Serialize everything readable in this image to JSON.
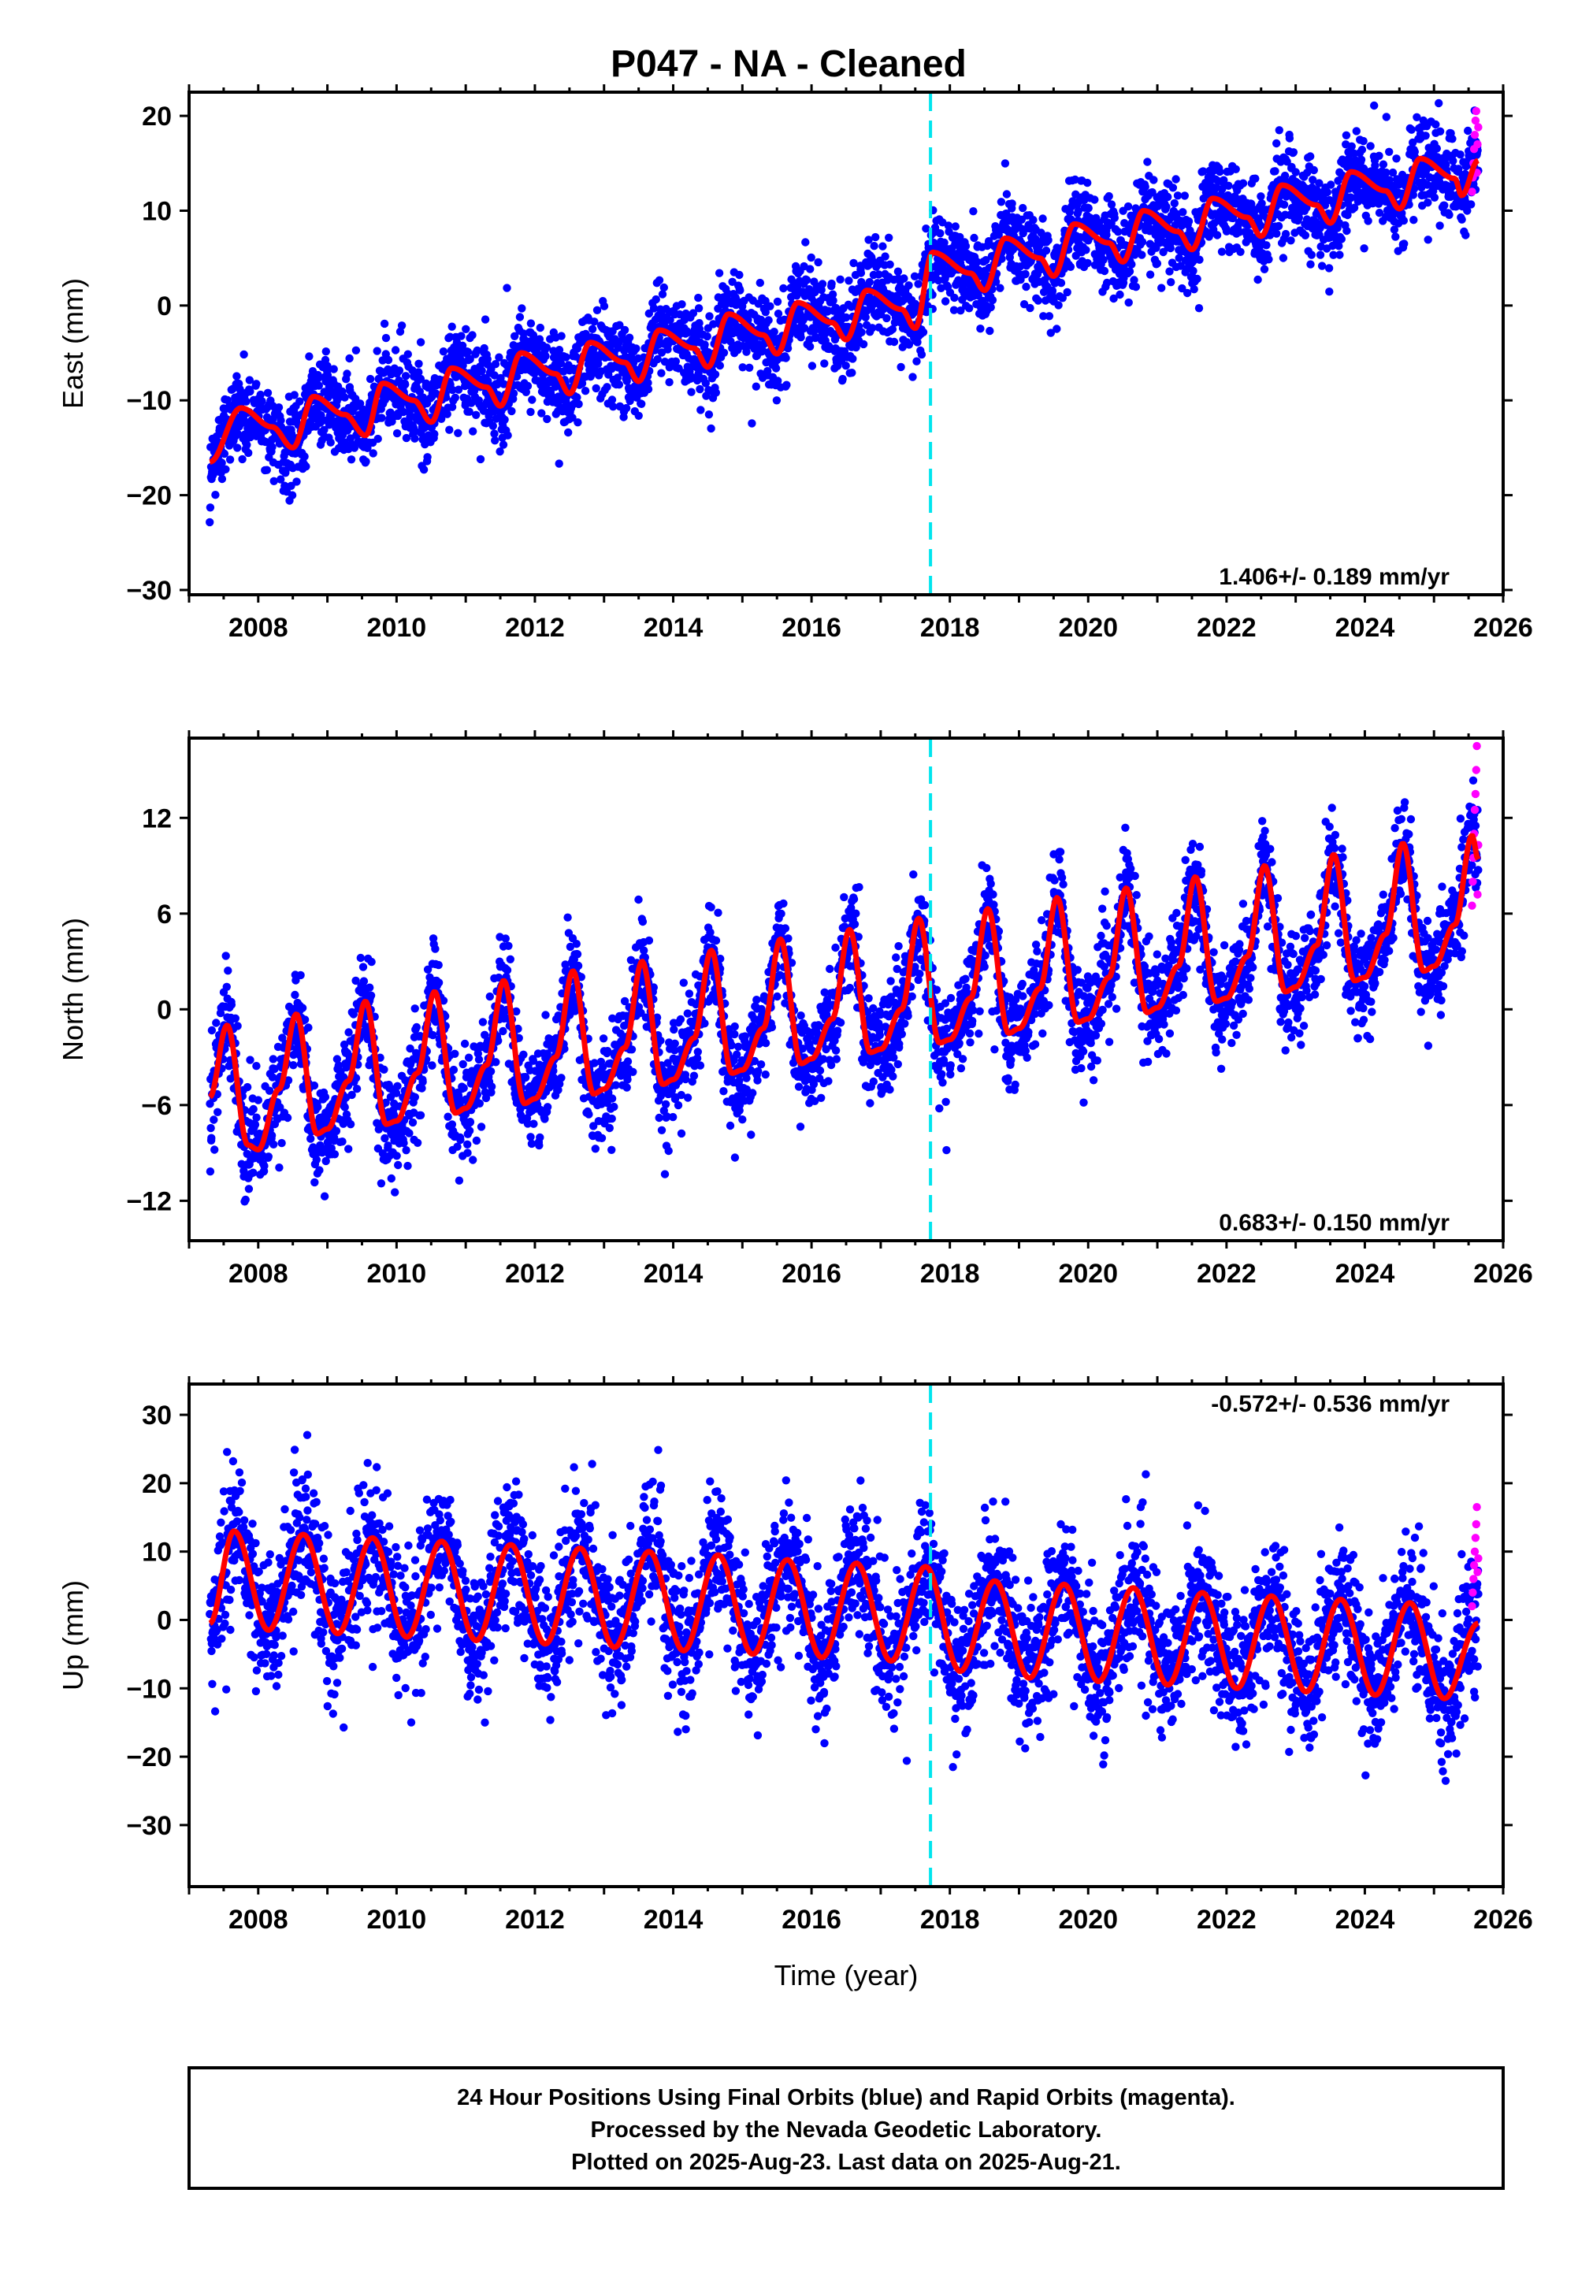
{
  "title": "P047  - NA - Cleaned",
  "colors": {
    "final_points": "#0000ff",
    "rapid_points": "#ff00ff",
    "model_curve": "#ff0000",
    "marker_line": "#00e5ee",
    "frame": "#000000"
  },
  "chart_data": [
    {
      "type": "scatter",
      "panel": "East",
      "ylabel": "East (mm)",
      "xlabel": "",
      "xlim": [
        2007.0,
        2026.0
      ],
      "ylim": [
        -30.5,
        22.5
      ],
      "x_ticks": [
        2008,
        2010,
        2012,
        2014,
        2016,
        2018,
        2020,
        2022,
        2024,
        2026
      ],
      "x_tick_labels": [
        "2008",
        "2010",
        "2012",
        "2014",
        "2016",
        "2018",
        "2020",
        "2022",
        "2024",
        "2026"
      ],
      "y_ticks": [
        20,
        10,
        0,
        -10,
        -20,
        -30
      ],
      "y_tick_labels": [
        "20",
        "10",
        "0",
        "−10",
        "−20",
        "−30"
      ],
      "rate_text": "1.406+/- 0.189 mm/yr",
      "rate_position": "bottom-right",
      "marker_year": 2017.72,
      "data_span": [
        2007.3,
        2025.64
      ],
      "model": {
        "samples": [
          [
            2007.3,
            -16.5
          ],
          [
            2007.75,
            -10.8
          ],
          [
            2008.2,
            -12.8
          ],
          [
            2008.5,
            -15.0
          ],
          [
            2008.8,
            -9.6
          ],
          [
            2009.25,
            -11.5
          ],
          [
            2009.55,
            -13.7
          ],
          [
            2009.8,
            -8.2
          ],
          [
            2010.25,
            -10.0
          ],
          [
            2010.5,
            -12.3
          ],
          [
            2010.8,
            -6.6
          ],
          [
            2011.3,
            -8.6
          ],
          [
            2011.5,
            -10.6
          ],
          [
            2011.8,
            -5.0
          ],
          [
            2012.3,
            -7.2
          ],
          [
            2012.5,
            -9.3
          ],
          [
            2012.8,
            -3.9
          ],
          [
            2013.3,
            -6.0
          ],
          [
            2013.5,
            -8.0
          ],
          [
            2013.8,
            -2.6
          ],
          [
            2014.3,
            -4.5
          ],
          [
            2014.5,
            -6.5
          ],
          [
            2014.8,
            -0.9
          ],
          [
            2015.3,
            -3.1
          ],
          [
            2015.5,
            -5.1
          ],
          [
            2015.8,
            0.3
          ],
          [
            2016.3,
            -1.8
          ],
          [
            2016.5,
            -3.6
          ],
          [
            2016.8,
            1.6
          ],
          [
            2017.3,
            -0.4
          ],
          [
            2017.5,
            -2.4
          ],
          [
            2017.75,
            5.6
          ],
          [
            2018.3,
            3.4
          ],
          [
            2018.5,
            1.6
          ],
          [
            2018.8,
            7.1
          ],
          [
            2019.3,
            5.0
          ],
          [
            2019.5,
            3.1
          ],
          [
            2019.8,
            8.6
          ],
          [
            2020.3,
            6.6
          ],
          [
            2020.5,
            4.6
          ],
          [
            2020.8,
            10.0
          ],
          [
            2021.3,
            7.8
          ],
          [
            2021.5,
            5.9
          ],
          [
            2021.8,
            11.3
          ],
          [
            2022.3,
            9.3
          ],
          [
            2022.5,
            7.3
          ],
          [
            2022.8,
            12.7
          ],
          [
            2023.3,
            10.6
          ],
          [
            2023.5,
            8.7
          ],
          [
            2023.8,
            14.1
          ],
          [
            2024.3,
            12.1
          ],
          [
            2024.5,
            10.2
          ],
          [
            2024.8,
            15.5
          ],
          [
            2025.3,
            13.4
          ],
          [
            2025.4,
            11.6
          ],
          [
            2025.64,
            15.3
          ]
        ]
      },
      "scatter": {
        "noise": 2.3,
        "outlier_fraction": 0.01,
        "outlier_spread": 8
      },
      "rapid": {
        "start": 2025.55,
        "end": 2025.64,
        "values": [
          12.0,
          13.5,
          15.0,
          16.5,
          18.0,
          19.5,
          20.5,
          14.0,
          17.0,
          18.8
        ]
      }
    },
    {
      "type": "scatter",
      "panel": "North",
      "ylabel": "North (mm)",
      "xlabel": "",
      "xlim": [
        2007.0,
        2026.0
      ],
      "ylim": [
        -14.5,
        17.0
      ],
      "x_ticks": [
        2008,
        2010,
        2012,
        2014,
        2016,
        2018,
        2020,
        2022,
        2024,
        2026
      ],
      "x_tick_labels": [
        "2008",
        "2010",
        "2012",
        "2014",
        "2016",
        "2018",
        "2020",
        "2022",
        "2024",
        "2026"
      ],
      "y_ticks": [
        12,
        6,
        0,
        -6,
        -12
      ],
      "y_tick_labels": [
        "12",
        "6",
        "0",
        "−6",
        "−12"
      ],
      "rate_text": "0.683+/- 0.150 mm/yr",
      "rate_position": "bottom-right",
      "marker_year": 2017.72,
      "data_span": [
        2007.3,
        2025.64
      ],
      "model": {
        "samples": [
          [
            2007.3,
            -5.5
          ],
          [
            2007.55,
            -1.0
          ],
          [
            2007.85,
            -8.5
          ],
          [
            2008.0,
            -8.8
          ],
          [
            2008.3,
            -5.0
          ],
          [
            2008.55,
            -0.3
          ],
          [
            2008.85,
            -7.8
          ],
          [
            2009.0,
            -7.5
          ],
          [
            2009.3,
            -4.5
          ],
          [
            2009.55,
            0.5
          ],
          [
            2009.85,
            -7.2
          ],
          [
            2010.0,
            -7.0
          ],
          [
            2010.3,
            -4.0
          ],
          [
            2010.55,
            1.1
          ],
          [
            2010.85,
            -6.5
          ],
          [
            2011.0,
            -6.2
          ],
          [
            2011.3,
            -3.5
          ],
          [
            2011.55,
            1.8
          ],
          [
            2011.85,
            -5.9
          ],
          [
            2012.0,
            -5.6
          ],
          [
            2012.3,
            -3.0
          ],
          [
            2012.55,
            2.4
          ],
          [
            2012.85,
            -5.3
          ],
          [
            2013.0,
            -5.0
          ],
          [
            2013.3,
            -2.4
          ],
          [
            2013.55,
            3.0
          ],
          [
            2013.85,
            -4.7
          ],
          [
            2014.0,
            -4.4
          ],
          [
            2014.3,
            -1.8
          ],
          [
            2014.55,
            3.7
          ],
          [
            2014.85,
            -4.0
          ],
          [
            2015.0,
            -3.8
          ],
          [
            2015.3,
            -1.2
          ],
          [
            2015.55,
            4.4
          ],
          [
            2015.85,
            -3.4
          ],
          [
            2016.0,
            -3.1
          ],
          [
            2016.3,
            -0.6
          ],
          [
            2016.55,
            5.0
          ],
          [
            2016.85,
            -2.7
          ],
          [
            2017.0,
            -2.5
          ],
          [
            2017.3,
            0.0
          ],
          [
            2017.55,
            5.7
          ],
          [
            2017.85,
            -2.1
          ],
          [
            2018.0,
            -1.9
          ],
          [
            2018.3,
            0.7
          ],
          [
            2018.55,
            6.3
          ],
          [
            2018.85,
            -1.5
          ],
          [
            2019.0,
            -1.2
          ],
          [
            2019.3,
            1.3
          ],
          [
            2019.55,
            7.0
          ],
          [
            2019.85,
            -0.8
          ],
          [
            2020.0,
            -0.6
          ],
          [
            2020.3,
            2.0
          ],
          [
            2020.55,
            7.6
          ],
          [
            2020.85,
            -0.2
          ],
          [
            2021.0,
            0.1
          ],
          [
            2021.3,
            2.7
          ],
          [
            2021.55,
            8.3
          ],
          [
            2021.85,
            0.5
          ],
          [
            2022.0,
            0.7
          ],
          [
            2022.3,
            3.3
          ],
          [
            2022.55,
            9.0
          ],
          [
            2022.85,
            1.1
          ],
          [
            2023.0,
            1.4
          ],
          [
            2023.3,
            4.0
          ],
          [
            2023.55,
            9.7
          ],
          [
            2023.85,
            1.8
          ],
          [
            2024.0,
            2.0
          ],
          [
            2024.3,
            4.7
          ],
          [
            2024.55,
            10.4
          ],
          [
            2024.85,
            2.4
          ],
          [
            2025.0,
            2.7
          ],
          [
            2025.3,
            5.3
          ],
          [
            2025.55,
            10.9
          ],
          [
            2025.64,
            9.4
          ]
        ]
      },
      "scatter": {
        "noise": 1.6,
        "outlier_fraction": 0.01,
        "outlier_spread": 5
      },
      "rapid": {
        "start": 2025.55,
        "end": 2025.64,
        "values": [
          6.5,
          8.0,
          9.5,
          11.0,
          12.5,
          13.5,
          15.0,
          16.5,
          7.2,
          10.3
        ]
      }
    },
    {
      "type": "scatter",
      "panel": "Up",
      "ylabel": "Up (mm)",
      "xlabel": "Time (year)",
      "xlim": [
        2007.0,
        2026.0
      ],
      "ylim": [
        -39.0,
        34.5
      ],
      "x_ticks": [
        2008,
        2010,
        2012,
        2014,
        2016,
        2018,
        2020,
        2022,
        2024,
        2026
      ],
      "x_tick_labels": [
        "2008",
        "2010",
        "2012",
        "2014",
        "2016",
        "2018",
        "2020",
        "2022",
        "2024",
        "2026"
      ],
      "y_ticks": [
        30,
        20,
        10,
        0,
        -10,
        -20,
        -30
      ],
      "y_tick_labels": [
        "30",
        "20",
        "10",
        "0",
        "−10",
        "−20",
        "−30"
      ],
      "rate_text": "-0.572+/- 0.536 mm/yr",
      "rate_position": "top-right",
      "marker_year": 2017.72,
      "data_span": [
        2007.3,
        2025.64
      ],
      "model": {
        "samples": [
          [
            2007.3,
            -0.5
          ],
          [
            2007.65,
            13.0
          ],
          [
            2008.15,
            -1.5
          ],
          [
            2008.65,
            12.5
          ],
          [
            2009.15,
            -2.0
          ],
          [
            2009.65,
            12.0
          ],
          [
            2010.15,
            -2.5
          ],
          [
            2010.65,
            11.5
          ],
          [
            2011.15,
            -3.0
          ],
          [
            2011.65,
            11.0
          ],
          [
            2012.15,
            -3.5
          ],
          [
            2012.65,
            10.5
          ],
          [
            2013.15,
            -4.0
          ],
          [
            2013.65,
            10.0
          ],
          [
            2014.15,
            -4.5
          ],
          [
            2014.65,
            9.5
          ],
          [
            2015.15,
            -5.0
          ],
          [
            2015.65,
            8.8
          ],
          [
            2016.15,
            -5.5
          ],
          [
            2016.65,
            8.3
          ],
          [
            2017.15,
            -6.0
          ],
          [
            2017.65,
            7.8
          ],
          [
            2018.15,
            -7.5
          ],
          [
            2018.65,
            5.7
          ],
          [
            2019.15,
            -8.5
          ],
          [
            2019.65,
            5.2
          ],
          [
            2020.15,
            -9.0
          ],
          [
            2020.65,
            4.7
          ],
          [
            2021.15,
            -9.5
          ],
          [
            2021.65,
            4.0
          ],
          [
            2022.15,
            -10.0
          ],
          [
            2022.65,
            3.5
          ],
          [
            2023.15,
            -10.5
          ],
          [
            2023.65,
            3.0
          ],
          [
            2024.15,
            -11.0
          ],
          [
            2024.65,
            2.5
          ],
          [
            2025.15,
            -11.5
          ],
          [
            2025.64,
            -0.5
          ]
        ]
      },
      "scatter": {
        "noise": 5.0,
        "outlier_fraction": 0.015,
        "outlier_spread": 14
      },
      "rapid": {
        "start": 2025.55,
        "end": 2025.64,
        "values": [
          2.0,
          4.0,
          6.0,
          8.0,
          10.0,
          12.0,
          14.0,
          16.5,
          7.0,
          9.0
        ]
      }
    }
  ],
  "footer": {
    "lines": [
      "24 Hour Positions Using Final Orbits (blue) and Rapid Orbits (magenta).",
      "Processed by the Nevada Geodetic Laboratory.",
      "Plotted on 2025-Aug-23. Last data on 2025-Aug-21."
    ]
  }
}
